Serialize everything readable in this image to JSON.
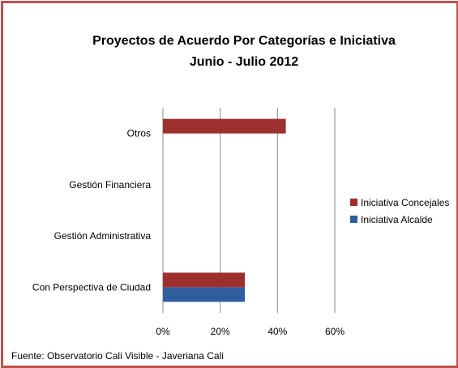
{
  "chart_data": {
    "type": "bar",
    "orientation": "horizontal",
    "title": "Proyectos de Acuerdo Por Categorías e Iniciativa",
    "subtitle": "Junio - Julio 2012",
    "categories": [
      "Con Perspectiva de Ciudad",
      "Gestión Administrativa",
      "Gestión Financiera",
      "Otros"
    ],
    "series": [
      {
        "name": "Iniciativa Alcalde",
        "values": [
          0.286,
          0,
          0,
          0
        ]
      },
      {
        "name": "Iniciativa Concejales",
        "values": [
          0.286,
          0,
          0,
          0.429
        ]
      }
    ],
    "xlim": [
      0,
      0.6
    ],
    "x_ticks": [
      "0%",
      "20%",
      "40%",
      "60%"
    ],
    "x_tick_values": [
      0,
      0.2,
      0.4,
      0.6
    ],
    "grid": true,
    "legend_position": "right",
    "colors": {
      "Iniciativa Alcalde": "#2e5e9e",
      "Iniciativa Concejales": "#9e2f2f",
      "border": "#c0504d",
      "gridline": "#8a8a8a"
    },
    "source": "Fuente: Observatorio Cali Visible - Javeriana Cali"
  }
}
